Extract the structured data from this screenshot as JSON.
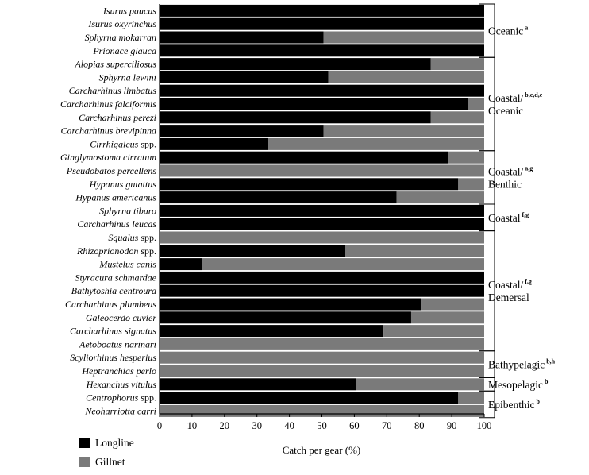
{
  "chart_data": {
    "type": "bar",
    "orientation": "horizontal",
    "stacked": true,
    "xlabel": "Catch per gear (%)",
    "xlim": [
      0,
      100
    ],
    "xticks": [
      0,
      10,
      20,
      30,
      40,
      50,
      60,
      70,
      80,
      90,
      100
    ],
    "legend_position": "bottom-left",
    "colors": {
      "Longline": "#000000",
      "Gillnet": "#7a7a7a"
    },
    "categories": [
      {
        "name": "Isurus paucus",
        "suffix": ""
      },
      {
        "name": "Isurus oxyrinchus",
        "suffix": ""
      },
      {
        "name": "Sphyrna mokarran",
        "suffix": ""
      },
      {
        "name": "Prionace glauca",
        "suffix": ""
      },
      {
        "name": "Alopias superciliosus",
        "suffix": ""
      },
      {
        "name": "Sphyrna lewini",
        "suffix": ""
      },
      {
        "name": "Carcharhinus limbatus",
        "suffix": ""
      },
      {
        "name": "Carcharhinus falciformis",
        "suffix": ""
      },
      {
        "name": "Carcharhinus perezi",
        "suffix": ""
      },
      {
        "name": "Carcharhinus brevipinna",
        "suffix": ""
      },
      {
        "name": "Cirrhigaleus",
        "suffix": " spp."
      },
      {
        "name": "Ginglymostoma cirratum",
        "suffix": ""
      },
      {
        "name": "Pseudobatos percellens",
        "suffix": ""
      },
      {
        "name": "Hypanus gutattus",
        "suffix": ""
      },
      {
        "name": "Hypanus americanus",
        "suffix": ""
      },
      {
        "name": "Sphyrna tiburo",
        "suffix": ""
      },
      {
        "name": "Carcharhinus leucas",
        "suffix": ""
      },
      {
        "name": "Squalus",
        "suffix": " spp."
      },
      {
        "name": "Rhizoprionodon",
        "suffix": " spp."
      },
      {
        "name": "Mustelus canis",
        "suffix": ""
      },
      {
        "name": "Styracura schmardae",
        "suffix": ""
      },
      {
        "name": "Bathytoshia centroura",
        "suffix": ""
      },
      {
        "name": "Carcharhinus plumbeus",
        "suffix": ""
      },
      {
        "name": "Galeocerdo cuvier",
        "suffix": ""
      },
      {
        "name": "Carcharhinus signatus",
        "suffix": ""
      },
      {
        "name": "Aetoboatus narinari",
        "suffix": ""
      },
      {
        "name": "Scyliorhinus hesperius",
        "suffix": ""
      },
      {
        "name": "Heptranchias perlo",
        "suffix": ""
      },
      {
        "name": "Hexanchus vitulus",
        "suffix": ""
      },
      {
        "name": "Centrophorus",
        "suffix": " spp."
      },
      {
        "name": "Neoharriotta carri",
        "suffix": ""
      }
    ],
    "series": [
      {
        "name": "Longline",
        "values": [
          100,
          100,
          50.5,
          100,
          83.5,
          52,
          100,
          95,
          83.5,
          50.5,
          33.5,
          89,
          0,
          92,
          73,
          100,
          100,
          0,
          57,
          13,
          100,
          100,
          80.5,
          77.5,
          69,
          0,
          0,
          0,
          60.5,
          92,
          0
        ]
      },
      {
        "name": "Gillnet",
        "values": [
          0,
          0,
          49.5,
          0,
          16.5,
          48,
          0,
          5,
          16.5,
          49.5,
          66.5,
          11,
          100,
          8,
          27,
          0,
          0,
          100,
          43,
          87,
          0,
          0,
          19.5,
          22.5,
          31,
          100,
          100,
          100,
          39.5,
          8,
          100
        ]
      }
    ],
    "groups": [
      {
        "lines": [
          "Oceanic"
        ],
        "sup": "a",
        "first": 0,
        "last": 3
      },
      {
        "lines": [
          "Coastal/",
          "Oceanic"
        ],
        "sup": "b,c,d,e",
        "first": 4,
        "last": 10
      },
      {
        "lines": [
          "Coastal/",
          "Benthic"
        ],
        "sup": "a,g",
        "first": 11,
        "last": 14
      },
      {
        "lines": [
          "Coastal"
        ],
        "sup": "f,g",
        "first": 15,
        "last": 16
      },
      {
        "lines": [
          "Coastal/",
          "Demersal"
        ],
        "sup": "f,g",
        "first": 17,
        "last": 25
      },
      {
        "lines": [
          "Bathypelagic"
        ],
        "sup": "b,h",
        "first": 26,
        "last": 27
      },
      {
        "lines": [
          "Mesopelagic"
        ],
        "sup": "b",
        "first": 28,
        "last": 28
      },
      {
        "lines": [
          "Epibenthic"
        ],
        "sup": "b",
        "first": 29,
        "last": 30
      }
    ]
  }
}
